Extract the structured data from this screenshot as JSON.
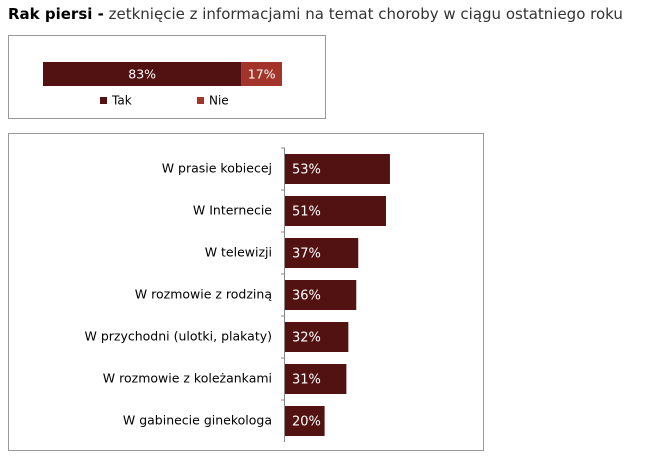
{
  "header": {
    "bold": "Rak piersi -",
    "text": "zetknięcie z informacjami na temat choroby w ciągu ostatniego roku"
  },
  "chart_data": [
    {
      "type": "stacked_bar",
      "xlim": [
        0,
        100
      ],
      "legend": "bottom",
      "series": [
        {
          "name": "Tak",
          "color": "#531212",
          "values": [
            83
          ],
          "value_labels": [
            "83%"
          ]
        },
        {
          "name": "Nie",
          "color": "#a3342a",
          "values": [
            17
          ],
          "value_labels": [
            "17%"
          ]
        }
      ]
    },
    {
      "type": "bar",
      "orientation": "horizontal",
      "color": "#531212",
      "xlim": [
        0,
        100
      ],
      "categories": [
        "W prasie kobiecej",
        "W Internecie",
        "W telewizji",
        "W rozmowie z rodziną",
        "W przychodni (ulotki, plakaty)",
        "W rozmowie z koleżankami",
        "W gabinecie ginekologa"
      ],
      "values": [
        53,
        51,
        37,
        36,
        32,
        31,
        20
      ],
      "value_labels": [
        "53%",
        "51%",
        "37%",
        "36%",
        "32%",
        "31%",
        "20%"
      ]
    }
  ]
}
